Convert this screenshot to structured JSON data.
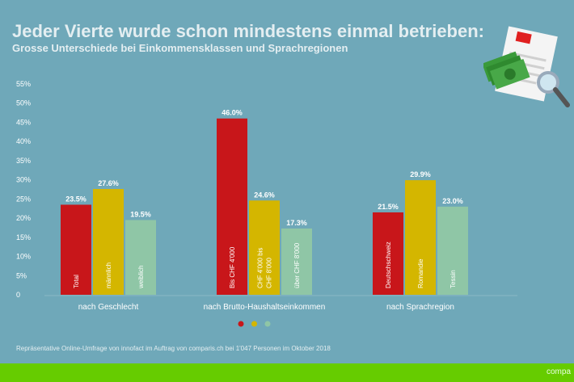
{
  "header": {
    "title": "Jeder Vierte wurde schon mindestens einmal betrieben:",
    "subtitle": "Grosse Unterschiede bei Einkommensklassen und Sprachregionen"
  },
  "chart_data": {
    "type": "bar",
    "ylim": [
      0,
      55
    ],
    "yticks": [
      "0",
      "5%",
      "10%",
      "15%",
      "20%",
      "25%",
      "30%",
      "35%",
      "40%",
      "45%",
      "50%",
      "55%"
    ],
    "grid": false,
    "legend_placement": "bottom-center",
    "colors": [
      "#c8161a",
      "#d4b600",
      "#8fc6a6"
    ],
    "groups": [
      {
        "label": "nach Geschlecht",
        "bars": [
          {
            "label": "Total",
            "value": 23.5,
            "value_label": "23.5%"
          },
          {
            "label": "männlich",
            "value": 27.6,
            "value_label": "27.6%"
          },
          {
            "label": "weiblich",
            "value": 19.5,
            "value_label": "19.5%"
          }
        ]
      },
      {
        "label": "nach Brutto-Haushaltseinkommen",
        "bars": [
          {
            "label": "Bis CHF 4'000",
            "value": 46.0,
            "value_label": "46.0%"
          },
          {
            "label": "CHF 4'000 bis CHF 8'000",
            "value": 24.6,
            "value_label": "24.6%"
          },
          {
            "label": "über CHF 8'000",
            "value": 17.3,
            "value_label": "17.3%"
          }
        ]
      },
      {
        "label": "nach Sprachregion",
        "bars": [
          {
            "label": "Deutschschweiz",
            "value": 21.5,
            "value_label": "21.5%"
          },
          {
            "label": "Romandie",
            "value": 29.9,
            "value_label": "29.9%"
          },
          {
            "label": "Tessin",
            "value": 23.0,
            "value_label": "23.0%"
          }
        ]
      }
    ]
  },
  "footer": {
    "note": "Repräsentative Online-Umfrage von innofact im Auftrag von comparis.ch bei 1'047 Personen im Oktober 2018",
    "brand": "compa"
  },
  "icons": {
    "illustration": "money-document-magnifier-icon"
  },
  "colors": {
    "background": "#6fa8b9",
    "band": "#66cc00"
  }
}
